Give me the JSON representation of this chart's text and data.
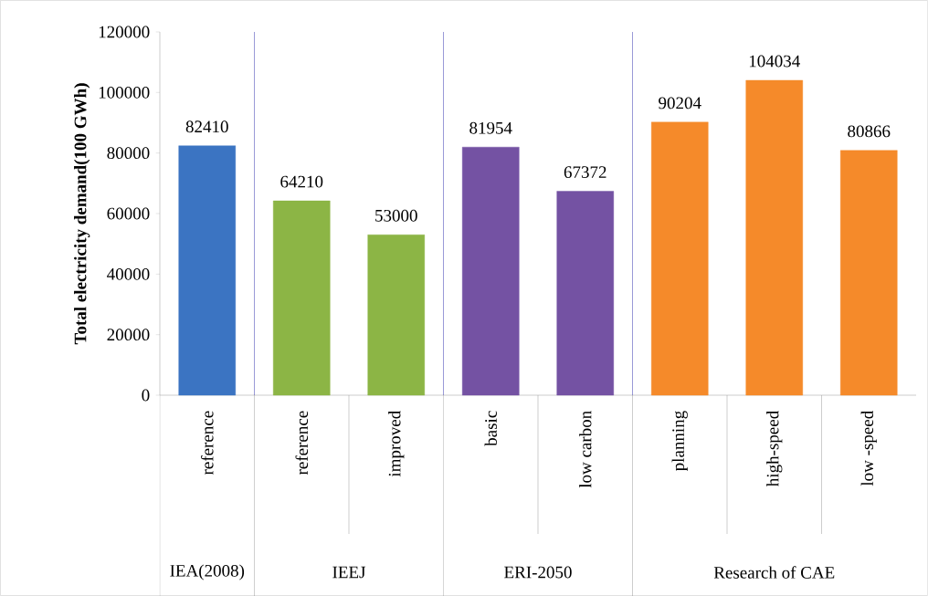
{
  "chart_data": {
    "type": "bar",
    "ylabel": "Total electricity demand(100 GWh)",
    "categories": [
      "reference",
      "reference",
      "improved",
      "basic",
      "low carbon",
      "planning",
      "high-speed",
      "low -speed"
    ],
    "values": [
      82410,
      64210,
      53000,
      81954,
      67372,
      90204,
      104034,
      80866
    ],
    "colors": [
      "#3b74c2",
      "#8cb545",
      "#8cb545",
      "#7452a3",
      "#7452a3",
      "#f58a2a",
      "#f58a2a",
      "#f58a2a"
    ],
    "annotations": [
      "IEA(2008)",
      "IEEJ",
      "ERI-2050",
      "Research of CAE"
    ],
    "ylim": [
      0,
      120000
    ],
    "yticks": [
      0,
      20000,
      40000,
      60000,
      80000,
      100000,
      120000
    ],
    "data_labels": true
  }
}
